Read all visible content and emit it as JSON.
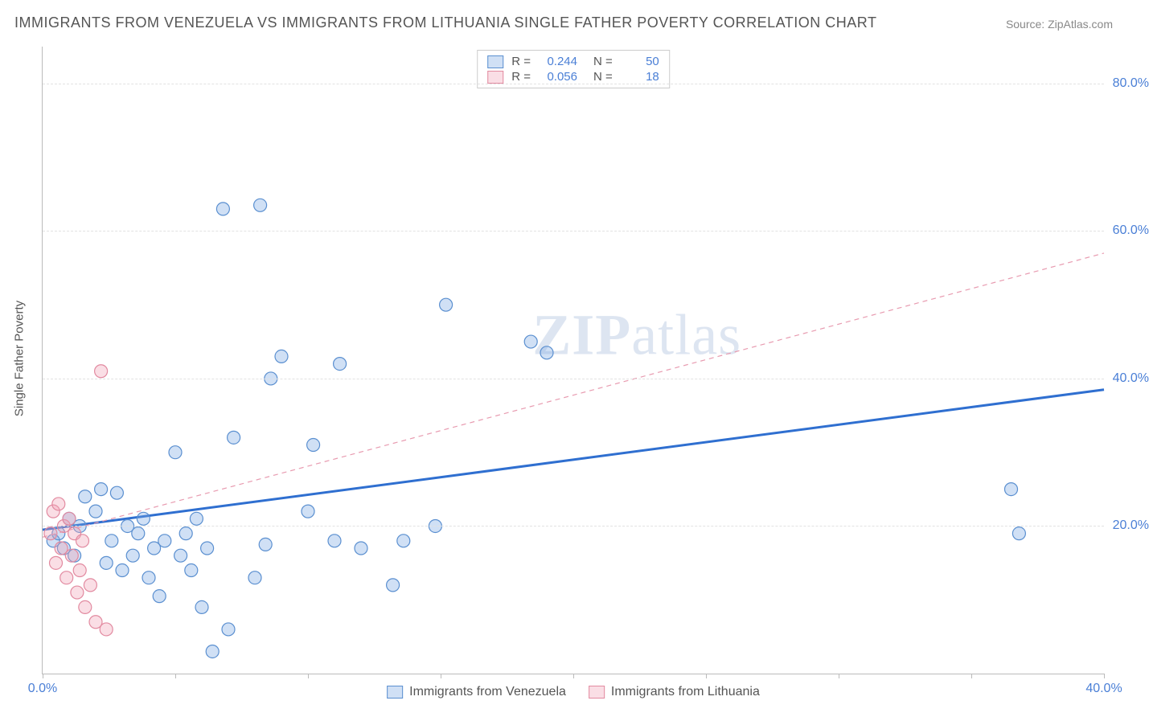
{
  "title": "IMMIGRANTS FROM VENEZUELA VS IMMIGRANTS FROM LITHUANIA SINGLE FATHER POVERTY CORRELATION CHART",
  "source": "Source: ZipAtlas.com",
  "watermark_zip": "ZIP",
  "watermark_atlas": "atlas",
  "ylabel": "Single Father Poverty",
  "chart": {
    "type": "scatter",
    "xlim": [
      0,
      40
    ],
    "ylim": [
      0,
      85
    ],
    "xticks": [
      0,
      5,
      10,
      15,
      20,
      25,
      30,
      35,
      40
    ],
    "xtick_labels": {
      "0": "0.0%",
      "40": "40.0%"
    },
    "yticks": [
      20,
      40,
      60,
      80
    ],
    "ytick_labels": {
      "20": "20.0%",
      "40": "40.0%",
      "60": "60.0%",
      "80": "80.0%"
    },
    "grid_color": "#e2e2e2",
    "background_color": "#ffffff",
    "marker_radius": 8,
    "marker_stroke_width": 1.2,
    "series": [
      {
        "name": "Immigrants from Venezuela",
        "fill": "rgba(120,165,225,0.35)",
        "stroke": "#5a8fd0",
        "r_value": "0.244",
        "n_value": "50",
        "trend": {
          "x1": 0,
          "y1": 19.5,
          "x2": 40,
          "y2": 38.5,
          "color": "#2f6fd0",
          "width": 3,
          "dash": "none"
        },
        "points": [
          [
            0.4,
            18
          ],
          [
            0.6,
            19
          ],
          [
            0.8,
            17
          ],
          [
            1.0,
            21
          ],
          [
            1.2,
            16
          ],
          [
            1.4,
            20
          ],
          [
            1.6,
            24
          ],
          [
            2.0,
            22
          ],
          [
            2.2,
            25
          ],
          [
            2.4,
            15
          ],
          [
            2.6,
            18
          ],
          [
            2.8,
            24.5
          ],
          [
            3.0,
            14
          ],
          [
            3.2,
            20
          ],
          [
            3.4,
            16
          ],
          [
            3.6,
            19
          ],
          [
            3.8,
            21
          ],
          [
            4.0,
            13
          ],
          [
            4.2,
            17
          ],
          [
            4.4,
            10.5
          ],
          [
            4.6,
            18
          ],
          [
            5.0,
            30
          ],
          [
            5.2,
            16
          ],
          [
            5.4,
            19
          ],
          [
            5.6,
            14
          ],
          [
            5.8,
            21
          ],
          [
            6.0,
            9
          ],
          [
            6.2,
            17
          ],
          [
            6.4,
            3
          ],
          [
            6.8,
            63
          ],
          [
            7.0,
            6
          ],
          [
            7.2,
            32
          ],
          [
            8.0,
            13
          ],
          [
            8.2,
            63.5
          ],
          [
            8.4,
            17.5
          ],
          [
            8.6,
            40
          ],
          [
            9.0,
            43
          ],
          [
            10.0,
            22
          ],
          [
            10.2,
            31
          ],
          [
            11.0,
            18
          ],
          [
            11.2,
            42
          ],
          [
            12.0,
            17
          ],
          [
            13.2,
            12
          ],
          [
            13.6,
            18
          ],
          [
            14.8,
            20
          ],
          [
            15.2,
            50
          ],
          [
            18.4,
            45
          ],
          [
            19.0,
            43.5
          ],
          [
            36.5,
            25
          ],
          [
            36.8,
            19
          ]
        ]
      },
      {
        "name": "Immigrants from Lithuania",
        "fill": "rgba(240,160,180,0.35)",
        "stroke": "#e28aa0",
        "r_value": "0.056",
        "n_value": "18",
        "trend": {
          "x1": 0,
          "y1": 18.5,
          "x2": 40,
          "y2": 57,
          "color": "#e89bb0",
          "width": 1.2,
          "dash": "6 5"
        },
        "points": [
          [
            0.3,
            19
          ],
          [
            0.4,
            22
          ],
          [
            0.5,
            15
          ],
          [
            0.6,
            23
          ],
          [
            0.7,
            17
          ],
          [
            0.8,
            20
          ],
          [
            0.9,
            13
          ],
          [
            1.0,
            21
          ],
          [
            1.1,
            16
          ],
          [
            1.2,
            19
          ],
          [
            1.3,
            11
          ],
          [
            1.4,
            14
          ],
          [
            1.5,
            18
          ],
          [
            1.6,
            9
          ],
          [
            1.8,
            12
          ],
          [
            2.0,
            7
          ],
          [
            2.2,
            41
          ],
          [
            2.4,
            6
          ]
        ]
      }
    ]
  },
  "legend_top": {
    "r_label": "R =",
    "n_label": "N ="
  },
  "legend_bottom_series": [
    "Immigrants from Venezuela",
    "Immigrants from Lithuania"
  ]
}
